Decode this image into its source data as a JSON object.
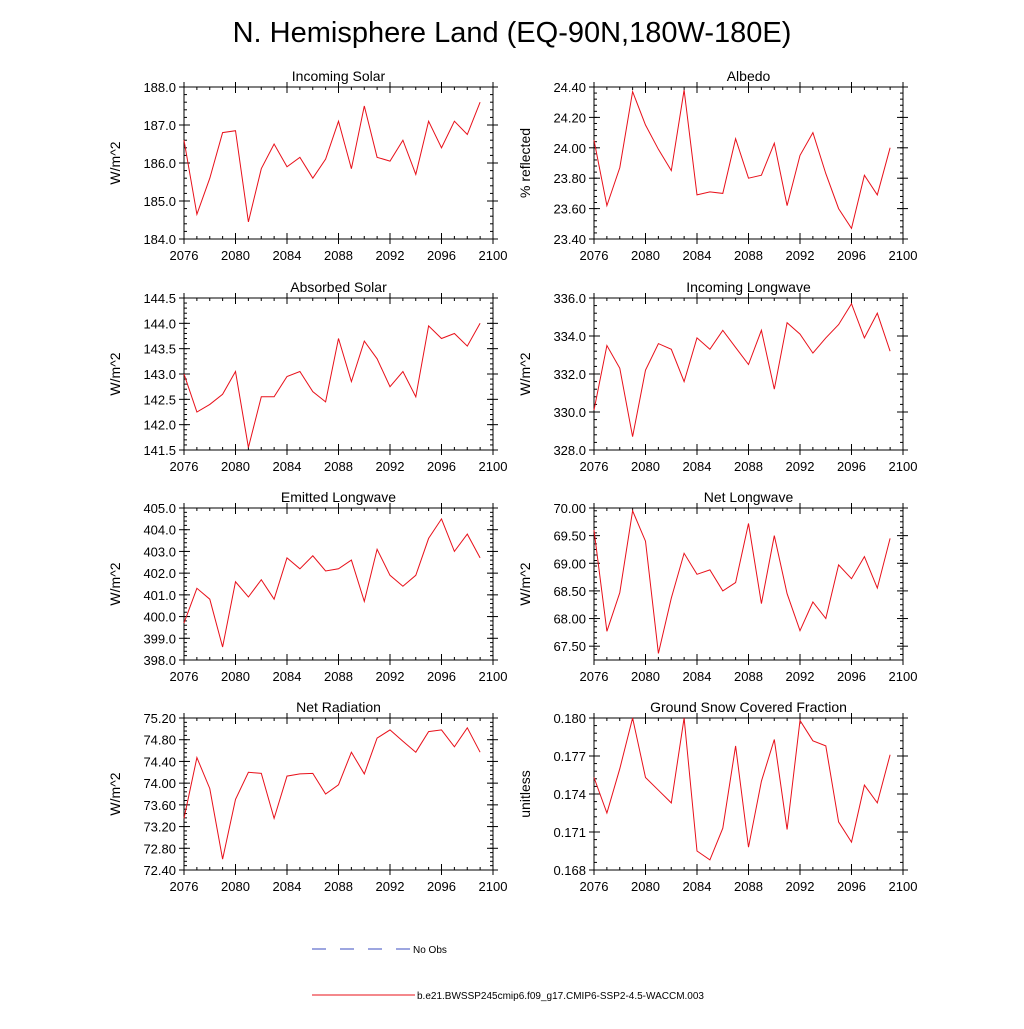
{
  "page": {
    "title": "N. Hemisphere Land (EQ-90N,180W-180E)"
  },
  "legend": {
    "entries": [
      {
        "label": "No Obs",
        "color": "#3b4cc0",
        "style": "dashed"
      },
      {
        "label": "b.e21.BWSSP245cmip6.f09_g17.CMIP6-SSP2-4.5-WACCM.003",
        "color": "#e8101a",
        "style": "solid"
      }
    ]
  },
  "chart_data": [
    {
      "type": "line",
      "title": "Incoming Solar",
      "ylabel": "W/m^2",
      "xlabel": "",
      "xlim": [
        2076,
        2100
      ],
      "xticks": [
        "2076",
        "2080",
        "2084",
        "2088",
        "2092",
        "2096",
        "2100"
      ],
      "ylim": [
        184.0,
        188.0
      ],
      "yticks": [
        "184.0",
        "185.0",
        "186.0",
        "187.0",
        "188.0"
      ],
      "x": [
        2076,
        2077,
        2078,
        2079,
        2080,
        2081,
        2082,
        2083,
        2084,
        2085,
        2086,
        2087,
        2088,
        2089,
        2090,
        2091,
        2092,
        2093,
        2094,
        2095,
        2096,
        2097,
        2098,
        2099
      ],
      "series": [
        {
          "name": "b.e21.BWSSP245cmip6.f09_g17.CMIP6-SSP2-4.5-WACCM.003",
          "color": "#e8101a",
          "values": [
            186.6,
            184.65,
            185.6,
            186.8,
            186.85,
            184.45,
            185.85,
            186.5,
            185.9,
            186.15,
            185.6,
            186.1,
            187.1,
            185.85,
            187.5,
            186.15,
            186.05,
            186.6,
            185.7,
            187.1,
            186.4,
            187.1,
            186.75,
            187.6
          ]
        }
      ]
    },
    {
      "type": "line",
      "title": "Albedo",
      "ylabel": "% reflected",
      "xlabel": "",
      "xlim": [
        2076,
        2100
      ],
      "xticks": [
        "2076",
        "2080",
        "2084",
        "2088",
        "2092",
        "2096",
        "2100"
      ],
      "ylim": [
        23.4,
        24.4
      ],
      "yticks": [
        "23.40",
        "23.60",
        "23.80",
        "24.00",
        "24.20",
        "24.40"
      ],
      "x": [
        2076,
        2077,
        2078,
        2079,
        2080,
        2081,
        2082,
        2083,
        2084,
        2085,
        2086,
        2087,
        2088,
        2089,
        2090,
        2091,
        2092,
        2093,
        2094,
        2095,
        2096,
        2097,
        2098,
        2099
      ],
      "series": [
        {
          "name": "b.e21.BWSSP245cmip6.f09_g17.CMIP6-SSP2-4.5-WACCM.003",
          "color": "#e8101a",
          "values": [
            24.05,
            23.62,
            23.87,
            24.37,
            24.15,
            23.99,
            23.85,
            24.38,
            23.69,
            23.71,
            23.7,
            24.06,
            23.8,
            23.82,
            24.03,
            23.62,
            23.95,
            24.1,
            23.83,
            23.6,
            23.47,
            23.82,
            23.69,
            24.0
          ]
        }
      ]
    },
    {
      "type": "line",
      "title": "Absorbed Solar",
      "ylabel": "W/m^2",
      "xlabel": "",
      "xlim": [
        2076,
        2100
      ],
      "xticks": [
        "2076",
        "2080",
        "2084",
        "2088",
        "2092",
        "2096",
        "2100"
      ],
      "ylim": [
        141.5,
        144.5
      ],
      "yticks": [
        "141.5",
        "142.0",
        "142.5",
        "143.0",
        "143.5",
        "144.0",
        "144.5"
      ],
      "x": [
        2076,
        2077,
        2078,
        2079,
        2080,
        2081,
        2082,
        2083,
        2084,
        2085,
        2086,
        2087,
        2088,
        2089,
        2090,
        2091,
        2092,
        2093,
        2094,
        2095,
        2096,
        2097,
        2098,
        2099
      ],
      "series": [
        {
          "name": "b.e21.BWSSP245cmip6.f09_g17.CMIP6-SSP2-4.5-WACCM.003",
          "color": "#e8101a",
          "values": [
            143.0,
            142.25,
            142.4,
            142.6,
            143.05,
            141.55,
            142.55,
            142.55,
            142.95,
            143.05,
            142.65,
            142.45,
            143.7,
            142.85,
            143.65,
            143.3,
            142.75,
            143.05,
            142.55,
            143.95,
            143.7,
            143.8,
            143.55,
            144.0
          ]
        }
      ]
    },
    {
      "type": "line",
      "title": "Incoming Longwave",
      "ylabel": "W/m^2",
      "xlabel": "",
      "xlim": [
        2076,
        2100
      ],
      "xticks": [
        "2076",
        "2080",
        "2084",
        "2088",
        "2092",
        "2096",
        "2100"
      ],
      "ylim": [
        328.0,
        336.0
      ],
      "yticks": [
        "328.0",
        "330.0",
        "332.0",
        "334.0",
        "336.0"
      ],
      "x": [
        2076,
        2077,
        2078,
        2079,
        2080,
        2081,
        2082,
        2083,
        2084,
        2085,
        2086,
        2087,
        2088,
        2089,
        2090,
        2091,
        2092,
        2093,
        2094,
        2095,
        2096,
        2097,
        2098,
        2099
      ],
      "series": [
        {
          "name": "b.e21.BWSSP245cmip6.f09_g17.CMIP6-SSP2-4.5-WACCM.003",
          "color": "#e8101a",
          "values": [
            330.1,
            333.5,
            332.3,
            328.7,
            332.2,
            333.6,
            333.3,
            331.6,
            333.9,
            333.3,
            334.3,
            333.4,
            332.5,
            334.3,
            331.2,
            334.7,
            334.1,
            333.1,
            333.9,
            334.6,
            335.7,
            333.9,
            335.2,
            333.2
          ]
        }
      ]
    },
    {
      "type": "line",
      "title": "Emitted Longwave",
      "ylabel": "W/m^2",
      "xlabel": "",
      "xlim": [
        2076,
        2100
      ],
      "xticks": [
        "2076",
        "2080",
        "2084",
        "2088",
        "2092",
        "2096",
        "2100"
      ],
      "ylim": [
        398.0,
        405.0
      ],
      "yticks": [
        "398.0",
        "399.0",
        "400.0",
        "401.0",
        "402.0",
        "403.0",
        "404.0",
        "405.0"
      ],
      "x": [
        2076,
        2077,
        2078,
        2079,
        2080,
        2081,
        2082,
        2083,
        2084,
        2085,
        2086,
        2087,
        2088,
        2089,
        2090,
        2091,
        2092,
        2093,
        2094,
        2095,
        2096,
        2097,
        2098,
        2099
      ],
      "series": [
        {
          "name": "b.e21.BWSSP245cmip6.f09_g17.CMIP6-SSP2-4.5-WACCM.003",
          "color": "#e8101a",
          "values": [
            399.7,
            401.3,
            400.8,
            398.6,
            401.6,
            400.9,
            401.7,
            400.8,
            402.7,
            402.2,
            402.8,
            402.1,
            402.2,
            402.6,
            400.7,
            403.1,
            401.9,
            401.4,
            401.9,
            403.6,
            404.5,
            403.0,
            403.8,
            402.7
          ]
        }
      ]
    },
    {
      "type": "line",
      "title": "Net Longwave",
      "ylabel": "W/m^2",
      "xlabel": "",
      "xlim": [
        2076,
        2100
      ],
      "xticks": [
        "2076",
        "2080",
        "2084",
        "2088",
        "2092",
        "2096",
        "2100"
      ],
      "ylim": [
        67.25,
        70.0
      ],
      "yticks": [
        "67.50",
        "68.00",
        "68.50",
        "69.00",
        "69.50",
        "70.00"
      ],
      "x": [
        2076,
        2077,
        2078,
        2079,
        2080,
        2081,
        2082,
        2083,
        2084,
        2085,
        2086,
        2087,
        2088,
        2089,
        2090,
        2091,
        2092,
        2093,
        2094,
        2095,
        2096,
        2097,
        2098,
        2099
      ],
      "series": [
        {
          "name": "b.e21.BWSSP245cmip6.f09_g17.CMIP6-SSP2-4.5-WACCM.003",
          "color": "#e8101a",
          "values": [
            69.6,
            67.77,
            68.47,
            69.95,
            69.4,
            67.37,
            68.37,
            69.18,
            68.8,
            68.88,
            68.5,
            68.65,
            69.72,
            68.27,
            69.5,
            68.45,
            67.78,
            68.3,
            68.0,
            68.97,
            68.72,
            69.12,
            68.55,
            69.45
          ]
        }
      ]
    },
    {
      "type": "line",
      "title": "Net Radiation",
      "ylabel": "W/m^2",
      "xlabel": "",
      "xlim": [
        2076,
        2100
      ],
      "xticks": [
        "2076",
        "2080",
        "2084",
        "2088",
        "2092",
        "2096",
        "2100"
      ],
      "ylim": [
        72.4,
        75.2
      ],
      "yticks": [
        "72.40",
        "72.80",
        "73.20",
        "73.60",
        "74.00",
        "74.40",
        "74.80",
        "75.20"
      ],
      "x": [
        2076,
        2077,
        2078,
        2079,
        2080,
        2081,
        2082,
        2083,
        2084,
        2085,
        2086,
        2087,
        2088,
        2089,
        2090,
        2091,
        2092,
        2093,
        2094,
        2095,
        2096,
        2097,
        2098,
        2099
      ],
      "series": [
        {
          "name": "b.e21.BWSSP245cmip6.f09_g17.CMIP6-SSP2-4.5-WACCM.003",
          "color": "#e8101a",
          "values": [
            73.35,
            74.47,
            73.9,
            72.6,
            73.7,
            74.2,
            74.18,
            73.35,
            74.13,
            74.17,
            74.18,
            73.8,
            73.97,
            74.57,
            74.17,
            74.83,
            74.98,
            74.77,
            74.57,
            74.95,
            74.98,
            74.67,
            75.02,
            74.57
          ]
        }
      ]
    },
    {
      "type": "line",
      "title": "Ground Snow Covered Fraction",
      "ylabel": "unitless",
      "xlabel": "",
      "xlim": [
        2076,
        2100
      ],
      "xticks": [
        "2076",
        "2080",
        "2084",
        "2088",
        "2092",
        "2096",
        "2100"
      ],
      "ylim": [
        0.168,
        0.18
      ],
      "yticks": [
        "0.168",
        "0.171",
        "0.174",
        "0.177",
        "0.180"
      ],
      "x": [
        2076,
        2077,
        2078,
        2079,
        2080,
        2081,
        2082,
        2083,
        2084,
        2085,
        2086,
        2087,
        2088,
        2089,
        2090,
        2091,
        2092,
        2093,
        2094,
        2095,
        2096,
        2097,
        2098,
        2099
      ],
      "series": [
        {
          "name": "b.e21.BWSSP245cmip6.f09_g17.CMIP6-SSP2-4.5-WACCM.003",
          "color": "#e8101a",
          "values": [
            0.1753,
            0.1725,
            0.176,
            0.18,
            0.1753,
            0.1743,
            0.1733,
            0.18,
            0.1695,
            0.1688,
            0.1713,
            0.1778,
            0.1698,
            0.175,
            0.1783,
            0.1712,
            0.1798,
            0.1782,
            0.1778,
            0.1718,
            0.1702,
            0.1747,
            0.1733,
            0.1771
          ]
        }
      ]
    }
  ]
}
